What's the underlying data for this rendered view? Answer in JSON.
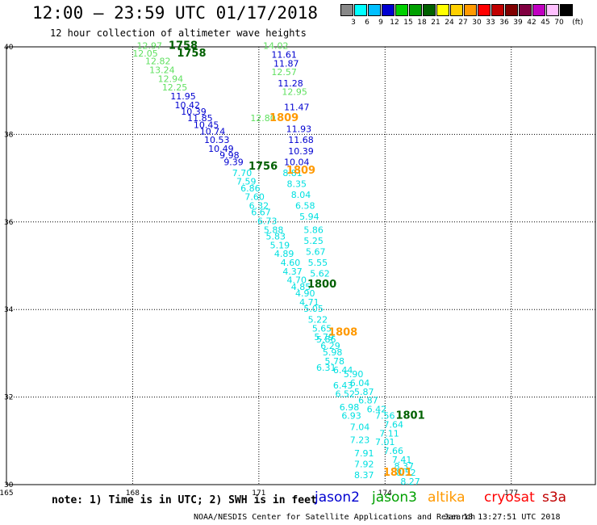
{
  "header": {
    "title": "12:00 — 23:59 UTC 01/17/2018",
    "subtitle": "12 hour collection of altimeter wave heights"
  },
  "scale": {
    "unit": "(ft)",
    "bins": [
      {
        "label": "3",
        "color": "#888888"
      },
      {
        "label": "6",
        "color": "#00ffff"
      },
      {
        "label": "9",
        "color": "#00bfff"
      },
      {
        "label": "12",
        "color": "#0000d0"
      },
      {
        "label": "15",
        "color": "#00d000"
      },
      {
        "label": "18",
        "color": "#00a000"
      },
      {
        "label": "21",
        "color": "#006000"
      },
      {
        "label": "24",
        "color": "#ffff00"
      },
      {
        "label": "27",
        "color": "#ffd000"
      },
      {
        "label": "30",
        "color": "#ff9900"
      },
      {
        "label": "33",
        "color": "#ff0000"
      },
      {
        "label": "36",
        "color": "#c00000"
      },
      {
        "label": "39",
        "color": "#800000"
      },
      {
        "label": "42",
        "color": "#800040"
      },
      {
        "label": "45",
        "color": "#c000c0"
      },
      {
        "label": "70",
        "color": "#ffc0ff"
      },
      {
        "label": "",
        "color": "#000000"
      }
    ]
  },
  "footer": {
    "note": "note: 1) Time is in UTC; 2) SWH is in feet",
    "credit": "NOAA/NESDIS Center for Satellite Applications and Research",
    "timestamp": "Jan 18 13:27:51 UTC 2018"
  },
  "legend": [
    {
      "label": "jason2",
      "color": "#0000d0"
    },
    {
      "label": "jason3",
      "color": "#00a000"
    },
    {
      "label": "altika",
      "color": "#ff9900"
    },
    {
      "label": "cryosat",
      "color": "#ff0000"
    },
    {
      "label": "s3a",
      "color": "#c00000"
    }
  ],
  "chart_data": {
    "type": "scatter",
    "xlim": [
      165,
      179
    ],
    "ylim": [
      30,
      40
    ],
    "x_ticks": [
      "165",
      "168",
      "171",
      "174",
      "177"
    ],
    "y_ticks": [
      "30",
      "32",
      "34",
      "36",
      "38",
      "40"
    ],
    "grid": true,
    "colors": {
      "cyan": "#00e0e0",
      "blue": "#0000d0",
      "lightgreen": "#60e060",
      "green": "#00a000",
      "darkgreen": "#006000",
      "orange": "#ff9900"
    },
    "times": [
      {
        "label": "1758",
        "x": 169.2,
        "y": 39.95,
        "color": "darkgreen"
      },
      {
        "label": "1758",
        "x": 169.4,
        "y": 39.78,
        "color": "darkgreen"
      },
      {
        "label": "1809",
        "x": 171.6,
        "y": 38.3,
        "color": "orange"
      },
      {
        "label": "1756",
        "x": 171.1,
        "y": 37.2,
        "color": "darkgreen"
      },
      {
        "label": "1809",
        "x": 172.0,
        "y": 37.1,
        "color": "orange"
      },
      {
        "label": "1800",
        "x": 172.5,
        "y": 34.5,
        "color": "darkgreen"
      },
      {
        "label": "1808",
        "x": 173.0,
        "y": 33.4,
        "color": "orange"
      },
      {
        "label": "1801",
        "x": 174.6,
        "y": 31.5,
        "color": "darkgreen"
      },
      {
        "label": "1801",
        "x": 174.3,
        "y": 30.2,
        "color": "orange"
      }
    ],
    "tracks": [
      {
        "name": "",
        "color": "lightgreen",
        "points": [
          {
            "x": 168.4,
            "y": 39.95,
            "v": "12.97"
          },
          {
            "x": 168.3,
            "y": 39.78,
            "v": "12.05"
          },
          {
            "x": 168.6,
            "y": 39.6,
            "v": "12.82"
          },
          {
            "x": 168.7,
            "y": 39.4,
            "v": "13.24"
          },
          {
            "x": 168.9,
            "y": 39.2,
            "v": "12.94"
          },
          {
            "x": 169.0,
            "y": 39.0,
            "v": "12.25"
          }
        ]
      },
      {
        "name": "",
        "color": "blue",
        "points": [
          {
            "x": 169.2,
            "y": 38.8,
            "v": "11.95"
          },
          {
            "x": 169.3,
            "y": 38.6,
            "v": "10.42"
          },
          {
            "x": 169.45,
            "y": 38.45,
            "v": "10.39"
          },
          {
            "x": 169.6,
            "y": 38.3,
            "v": "11.85"
          },
          {
            "x": 169.75,
            "y": 38.15,
            "v": "10.45"
          },
          {
            "x": 169.9,
            "y": 38.0,
            "v": "10.74"
          },
          {
            "x": 170.0,
            "y": 37.8,
            "v": "10.53"
          },
          {
            "x": 170.1,
            "y": 37.6,
            "v": "10.49"
          },
          {
            "x": 170.3,
            "y": 37.45,
            "v": "9.98"
          },
          {
            "x": 170.4,
            "y": 37.3,
            "v": "9.39"
          }
        ]
      },
      {
        "name": "",
        "color": "cyan",
        "points": [
          {
            "x": 170.6,
            "y": 37.05,
            "v": "7.70"
          },
          {
            "x": 170.7,
            "y": 36.85,
            "v": "7.59"
          },
          {
            "x": 170.8,
            "y": 36.7,
            "v": "6.86"
          },
          {
            "x": 170.9,
            "y": 36.5,
            "v": "7.60"
          },
          {
            "x": 171.0,
            "y": 36.3,
            "v": "6.32"
          },
          {
            "x": 171.05,
            "y": 36.15,
            "v": "6.67"
          },
          {
            "x": 171.2,
            "y": 35.95,
            "v": "6.73"
          },
          {
            "x": 171.35,
            "y": 35.75,
            "v": "5.88"
          },
          {
            "x": 171.4,
            "y": 35.6,
            "v": "5.83"
          },
          {
            "x": 171.5,
            "y": 35.4,
            "v": "5.19"
          },
          {
            "x": 171.6,
            "y": 35.2,
            "v": "4.89"
          },
          {
            "x": 171.75,
            "y": 35.0,
            "v": "4.60"
          },
          {
            "x": 171.8,
            "y": 34.8,
            "v": "4.37"
          },
          {
            "x": 171.9,
            "y": 34.6,
            "v": "4.70"
          },
          {
            "x": 172.0,
            "y": 34.45,
            "v": "4.85"
          },
          {
            "x": 172.1,
            "y": 34.3,
            "v": "4.90"
          },
          {
            "x": 172.2,
            "y": 34.1,
            "v": "4.71"
          },
          {
            "x": 172.3,
            "y": 33.95,
            "v": "5.05"
          },
          {
            "x": 172.4,
            "y": 33.7,
            "v": "5.22"
          },
          {
            "x": 172.5,
            "y": 33.5,
            "v": "5.65"
          },
          {
            "x": 172.55,
            "y": 33.3,
            "v": "5.79"
          },
          {
            "x": 172.7,
            "y": 33.1,
            "v": "6.29"
          },
          {
            "x": 172.75,
            "y": 32.95,
            "v": "5.98"
          },
          {
            "x": 172.8,
            "y": 32.75,
            "v": "5.78"
          },
          {
            "x": 173.0,
            "y": 32.55,
            "v": "6.44"
          },
          {
            "x": 173.0,
            "y": 32.2,
            "v": "6.43"
          },
          {
            "x": 173.05,
            "y": 32.0,
            "v": "6.52"
          },
          {
            "x": 173.15,
            "y": 31.7,
            "v": "6.98"
          },
          {
            "x": 173.2,
            "y": 31.5,
            "v": "6.93"
          },
          {
            "x": 173.4,
            "y": 31.25,
            "v": "7.04"
          },
          {
            "x": 173.4,
            "y": 30.95,
            "v": "7.23"
          },
          {
            "x": 173.5,
            "y": 30.65,
            "v": "7.91"
          },
          {
            "x": 173.5,
            "y": 30.4,
            "v": "7.92"
          },
          {
            "x": 173.5,
            "y": 30.15,
            "v": "8.37"
          }
        ]
      },
      {
        "name": "",
        "color": "lightgreen",
        "points": [
          {
            "x": 171.4,
            "y": 39.95,
            "v": "14.02"
          },
          {
            "x": 171.6,
            "y": 39.35,
            "v": "12.57"
          },
          {
            "x": 171.85,
            "y": 38.9,
            "v": "12.95"
          },
          {
            "x": 171.1,
            "y": 38.3,
            "v": "12.80"
          }
        ]
      },
      {
        "name": "",
        "color": "blue",
        "points": [
          {
            "x": 171.6,
            "y": 39.75,
            "v": "11.61"
          },
          {
            "x": 171.65,
            "y": 39.55,
            "v": "11.87"
          },
          {
            "x": 171.75,
            "y": 39.1,
            "v": "11.28"
          },
          {
            "x": 171.9,
            "y": 38.55,
            "v": "11.47"
          },
          {
            "x": 171.95,
            "y": 38.05,
            "v": "11.93"
          },
          {
            "x": 172.0,
            "y": 37.8,
            "v": "11.68"
          },
          {
            "x": 172.0,
            "y": 37.55,
            "v": "10.39"
          },
          {
            "x": 171.9,
            "y": 37.3,
            "v": "10.04"
          }
        ]
      },
      {
        "name": "",
        "color": "cyan",
        "points": [
          {
            "x": 171.8,
            "y": 37.05,
            "v": "8.81"
          },
          {
            "x": 171.9,
            "y": 36.8,
            "v": "8.35"
          },
          {
            "x": 172.0,
            "y": 36.55,
            "v": "8.04"
          },
          {
            "x": 172.1,
            "y": 36.3,
            "v": "6.58"
          },
          {
            "x": 172.2,
            "y": 36.05,
            "v": "5.94"
          },
          {
            "x": 172.3,
            "y": 35.75,
            "v": "5.86"
          },
          {
            "x": 172.3,
            "y": 35.5,
            "v": "5.25"
          },
          {
            "x": 172.35,
            "y": 35.25,
            "v": "5.67"
          },
          {
            "x": 172.4,
            "y": 35.0,
            "v": "5.55"
          },
          {
            "x": 172.45,
            "y": 34.75,
            "v": "5.62"
          },
          {
            "x": 172.6,
            "y": 33.25,
            "v": "5.86"
          },
          {
            "x": 172.6,
            "y": 32.6,
            "v": "6.31"
          },
          {
            "x": 173.25,
            "y": 32.45,
            "v": "5.90"
          },
          {
            "x": 173.4,
            "y": 32.25,
            "v": "6.04"
          },
          {
            "x": 173.5,
            "y": 32.05,
            "v": "5.87"
          },
          {
            "x": 173.6,
            "y": 31.85,
            "v": "6.87"
          },
          {
            "x": 173.8,
            "y": 31.65,
            "v": "6.42"
          },
          {
            "x": 174.0,
            "y": 31.5,
            "v": "7.56"
          },
          {
            "x": 174.2,
            "y": 31.3,
            "v": "7.64"
          },
          {
            "x": 174.1,
            "y": 31.1,
            "v": "7.11"
          },
          {
            "x": 174.0,
            "y": 30.9,
            "v": "7.01"
          },
          {
            "x": 174.2,
            "y": 30.7,
            "v": "7.66"
          },
          {
            "x": 174.4,
            "y": 30.5,
            "v": "7.41"
          },
          {
            "x": 174.45,
            "y": 30.35,
            "v": "8.37"
          },
          {
            "x": 174.5,
            "y": 30.2,
            "v": "8.52"
          },
          {
            "x": 174.6,
            "y": 30.0,
            "v": "8.27"
          }
        ]
      }
    ]
  }
}
